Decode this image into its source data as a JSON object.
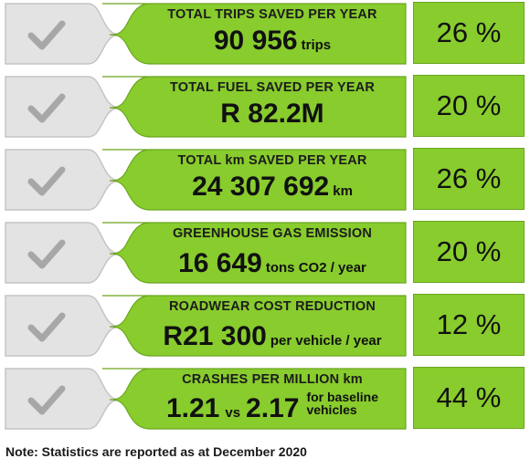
{
  "rows": [
    {
      "label": "TOTAL TRIPS SAVED PER YEAR",
      "value": "90 956",
      "unit": "trips",
      "percent": "26 %"
    },
    {
      "label": "TOTAL FUEL SAVED PER YEAR",
      "value": "R 82.2M",
      "unit": "",
      "percent": "20 %"
    },
    {
      "label": "TOTAL km SAVED PER YEAR",
      "value": "24 307 692",
      "unit": "km",
      "percent": "26 %"
    },
    {
      "label": "GREENHOUSE GAS EMISSION",
      "value": "16 649",
      "unit": "tons CO2 / year",
      "percent": "20 %"
    },
    {
      "label": "ROADWEAR COST REDUCTION",
      "value": "R21 300",
      "unit": "per vehicle / year",
      "percent": "12 %"
    },
    {
      "label": "CRASHES PER MILLION km",
      "value": "1.21",
      "vs": "vs",
      "value2": "2.17",
      "unit_line1": "for baseline",
      "unit_line2": "vehicles",
      "percent": "44 %"
    }
  ],
  "note": "Note: Statistics are reported as at December 2020",
  "colors": {
    "green": "#88cc2d",
    "grey": "#e3e3e3",
    "check": "#a7a7a7"
  },
  "icons": {
    "check": "check-icon"
  }
}
